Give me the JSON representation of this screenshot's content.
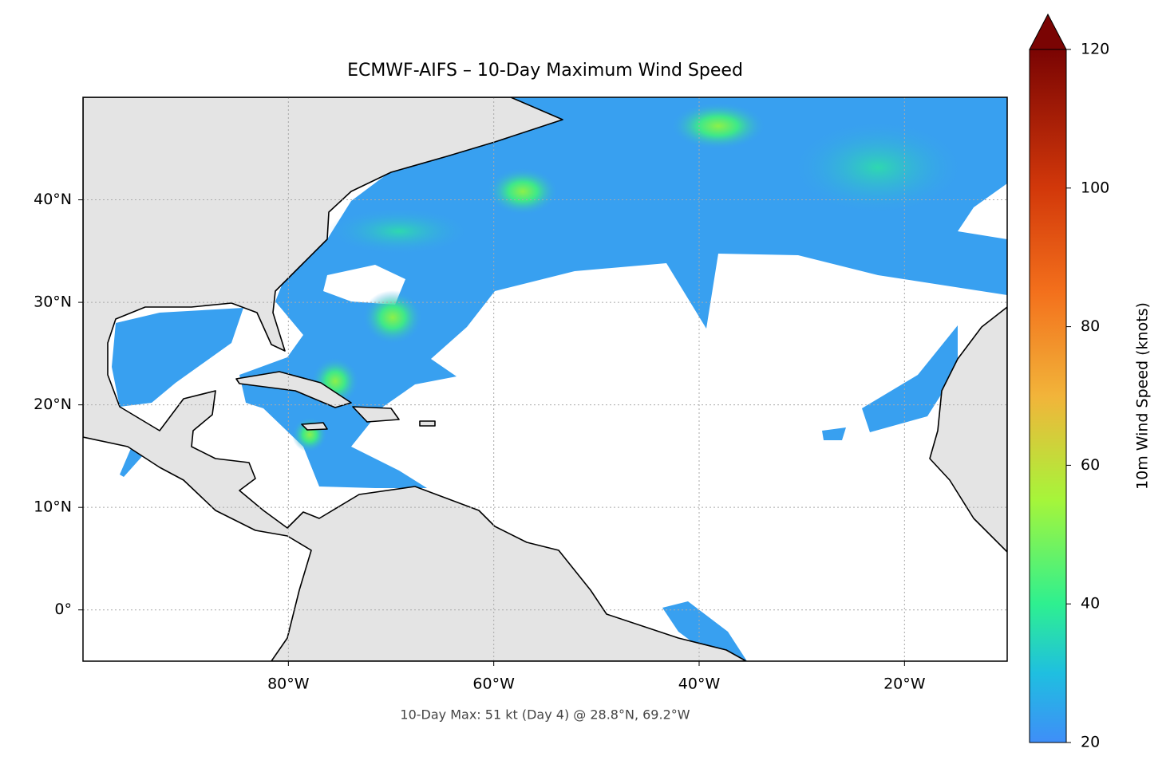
{
  "chart_data": {
    "type": "map",
    "title": "ECMWF-AIFS – 10-Day Maximum Wind Speed",
    "annotation": "10-Day Max: 51 kt (Day 4) @ 28.8°N, 69.2°W",
    "xlim": [
      -100,
      -10
    ],
    "ylim": [
      -5,
      50
    ],
    "xticks": [
      {
        "value": -80,
        "label": "80°W"
      },
      {
        "value": -60,
        "label": "60°W"
      },
      {
        "value": -40,
        "label": "40°W"
      },
      {
        "value": -20,
        "label": "20°W"
      }
    ],
    "yticks": [
      {
        "value": 0,
        "label": "0°"
      },
      {
        "value": 10,
        "label": "10°N"
      },
      {
        "value": 20,
        "label": "20°N"
      },
      {
        "value": 30,
        "label": "30°N"
      },
      {
        "value": 40,
        "label": "40°N"
      }
    ],
    "grid": true,
    "colorbar": {
      "label": "10m Wind Speed (knots)",
      "lim": [
        20,
        120
      ],
      "ticks": [
        20,
        40,
        60,
        80,
        100,
        120
      ],
      "extend": "max"
    }
  }
}
